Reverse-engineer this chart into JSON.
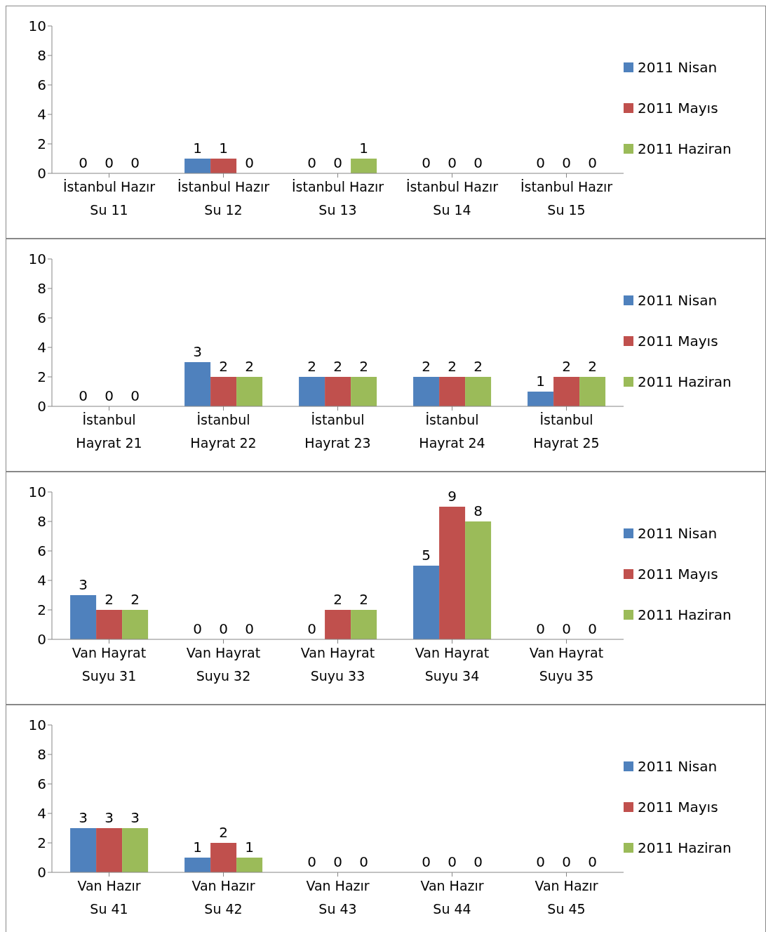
{
  "chart_data": [
    {
      "type": "bar",
      "categories": [
        "İstanbul Hazır\nSu 11",
        "İstanbul Hazır\nSu 12",
        "İstanbul Hazır\nSu 13",
        "İstanbul Hazır\nSu 14",
        "İstanbul Hazır\nSu 15"
      ],
      "series": [
        {
          "name": "2011 Nisan",
          "color": "#4f81bd",
          "values": [
            0,
            1,
            0,
            0,
            0
          ]
        },
        {
          "name": "2011 Mayıs",
          "color": "#c0504d",
          "values": [
            0,
            1,
            0,
            0,
            0
          ]
        },
        {
          "name": "2011 Haziran",
          "color": "#9bbb59",
          "values": [
            0,
            0,
            1,
            0,
            0
          ]
        }
      ],
      "ylim": [
        0,
        10
      ],
      "yticks": [
        0,
        2,
        4,
        6,
        8,
        10
      ],
      "data_labels": true,
      "legend": "right",
      "grid": false
    },
    {
      "type": "bar",
      "categories": [
        "İstanbul\nHayrat 21",
        "İstanbul\nHayrat 22",
        "İstanbul\nHayrat 23",
        "İstanbul\nHayrat 24",
        "İstanbul\nHayrat 25"
      ],
      "series": [
        {
          "name": "2011 Nisan",
          "color": "#4f81bd",
          "values": [
            0,
            3,
            2,
            2,
            1
          ]
        },
        {
          "name": "2011 Mayıs",
          "color": "#c0504d",
          "values": [
            0,
            2,
            2,
            2,
            2
          ]
        },
        {
          "name": "2011 Haziran",
          "color": "#9bbb59",
          "values": [
            0,
            2,
            2,
            2,
            2
          ]
        }
      ],
      "ylim": [
        0,
        10
      ],
      "yticks": [
        0,
        2,
        4,
        6,
        8,
        10
      ],
      "data_labels": true,
      "legend": "right",
      "grid": false
    },
    {
      "type": "bar",
      "categories": [
        "Van Hayrat\nSuyu 31",
        "Van Hayrat\nSuyu 32",
        "Van Hayrat\nSuyu 33",
        "Van Hayrat\nSuyu 34",
        "Van Hayrat\nSuyu 35"
      ],
      "series": [
        {
          "name": "2011 Nisan",
          "color": "#4f81bd",
          "values": [
            3,
            0,
            0,
            5,
            0
          ]
        },
        {
          "name": "2011 Mayıs",
          "color": "#c0504d",
          "values": [
            2,
            0,
            2,
            9,
            0
          ]
        },
        {
          "name": "2011 Haziran",
          "color": "#9bbb59",
          "values": [
            2,
            0,
            2,
            8,
            0
          ]
        }
      ],
      "ylim": [
        0,
        10
      ],
      "yticks": [
        0,
        2,
        4,
        6,
        8,
        10
      ],
      "data_labels": true,
      "legend": "right",
      "grid": false
    },
    {
      "type": "bar",
      "categories": [
        "Van Hazır\nSu 41",
        "Van Hazır\nSu 42",
        "Van Hazır\nSu 43",
        "Van Hazır\nSu 44",
        "Van Hazır\nSu 45"
      ],
      "series": [
        {
          "name": "2011 Nisan",
          "color": "#4f81bd",
          "values": [
            3,
            1,
            0,
            0,
            0
          ]
        },
        {
          "name": "2011 Mayıs",
          "color": "#c0504d",
          "values": [
            3,
            2,
            0,
            0,
            0
          ]
        },
        {
          "name": "2011 Haziran",
          "color": "#9bbb59",
          "values": [
            3,
            1,
            0,
            0,
            0
          ]
        }
      ],
      "ylim": [
        0,
        10
      ],
      "yticks": [
        0,
        2,
        4,
        6,
        8,
        10
      ],
      "data_labels": true,
      "legend": "right",
      "grid": false
    }
  ]
}
